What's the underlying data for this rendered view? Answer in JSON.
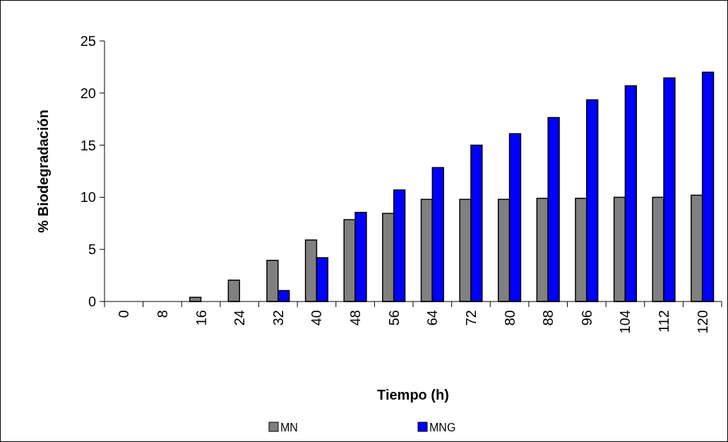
{
  "chart_data": {
    "type": "bar",
    "xlabel": "Tiempo (h)",
    "ylabel": "% Biodegradación",
    "categories": [
      "0",
      "8",
      "16",
      "24",
      "32",
      "40",
      "48",
      "56",
      "64",
      "72",
      "80",
      "88",
      "96",
      "104",
      "112",
      "120"
    ],
    "series": [
      {
        "name": "MN",
        "color": "#808080",
        "values": [
          0,
          0,
          0.4,
          2.05,
          3.95,
          5.9,
          7.85,
          8.45,
          9.8,
          9.8,
          9.8,
          9.9,
          9.9,
          10,
          10,
          10.2
        ]
      },
      {
        "name": "MNG",
        "color": "#0000ff",
        "values": [
          0,
          0,
          0,
          0,
          1.05,
          4.2,
          8.55,
          10.7,
          12.85,
          15,
          16.1,
          17.65,
          19.35,
          20.7,
          21.45,
          22
        ]
      }
    ],
    "ylim": [
      0,
      25
    ],
    "yticks": [
      0,
      5,
      10,
      15,
      20,
      25
    ],
    "grid": false,
    "legend": "bottom"
  }
}
